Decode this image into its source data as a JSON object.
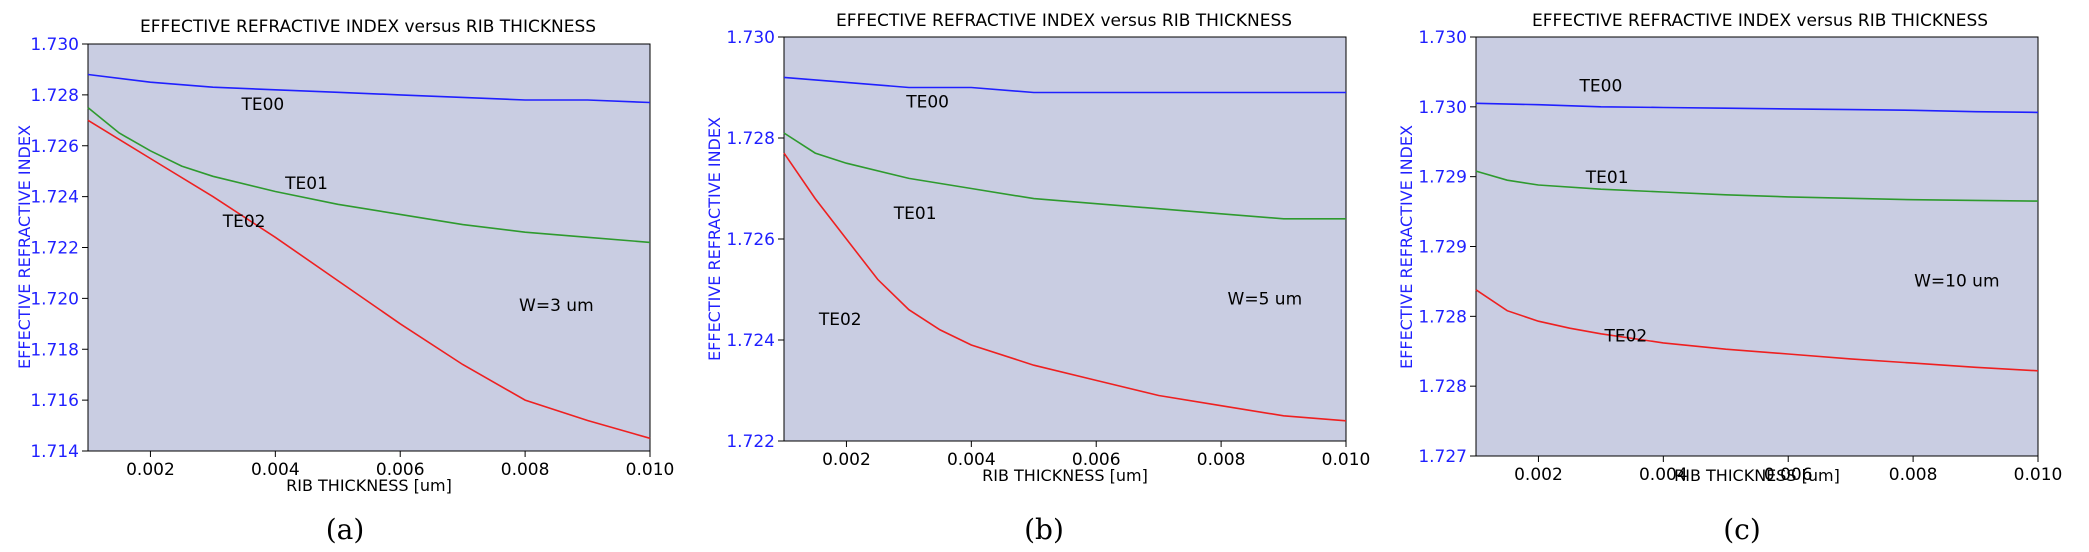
{
  "chart_data": [
    {
      "type": "line",
      "caption": "(a)",
      "title": "EFFECTIVE REFRACTIVE INDEX versus RIB THICKNESS",
      "xlabel": "RIB THICKNESS [um]",
      "ylabel": "EFFECTIVE REFRACTIVE INDEX",
      "xlim": [
        0.001,
        0.01
      ],
      "ylim": [
        1.714,
        1.73
      ],
      "xticks": [
        0.002,
        0.004,
        0.006,
        0.008,
        0.01
      ],
      "xtick_labels": [
        "0.002",
        "0.004",
        "0.006",
        "0.008",
        "0.010"
      ],
      "yticks": [
        1.714,
        1.716,
        1.718,
        1.72,
        1.722,
        1.724,
        1.726,
        1.728,
        1.73
      ],
      "ytick_labels": [
        "1.714",
        "1.716",
        "1.718",
        "1.720",
        "1.722",
        "1.724",
        "1.726",
        "1.728",
        "1.730"
      ],
      "annotation": {
        "text": "W=3 um",
        "x": 0.0085,
        "y": 1.7195
      },
      "series": [
        {
          "name": "TE00",
          "color": "#2020ff",
          "label_at": [
            0.0038,
            1.7274
          ],
          "x": [
            0.001,
            0.002,
            0.003,
            0.004,
            0.005,
            0.006,
            0.007,
            0.008,
            0.009,
            0.01
          ],
          "y": [
            1.7288,
            1.7285,
            1.7283,
            1.7282,
            1.7281,
            1.728,
            1.7279,
            1.7278,
            1.7278,
            1.7277
          ]
        },
        {
          "name": "TE01",
          "color": "#2e9a2e",
          "label_at": [
            0.0045,
            1.7243
          ],
          "x": [
            0.001,
            0.0015,
            0.002,
            0.0025,
            0.003,
            0.004,
            0.005,
            0.006,
            0.007,
            0.008,
            0.009,
            0.01
          ],
          "y": [
            1.7275,
            1.7265,
            1.7258,
            1.7252,
            1.7248,
            1.7242,
            1.7237,
            1.7233,
            1.7229,
            1.7226,
            1.7224,
            1.7222
          ]
        },
        {
          "name": "TE02",
          "color": "#ee2020",
          "label_at": [
            0.0035,
            1.7228
          ],
          "x": [
            0.001,
            0.002,
            0.003,
            0.004,
            0.005,
            0.006,
            0.007,
            0.008,
            0.009,
            0.01
          ],
          "y": [
            1.727,
            1.7255,
            1.724,
            1.7224,
            1.7207,
            1.719,
            1.7174,
            1.716,
            1.7152,
            1.7145
          ]
        }
      ]
    },
    {
      "type": "line",
      "caption": "(b)",
      "title": "EFFECTIVE REFRACTIVE INDEX versus RIB THICKNESS",
      "xlabel": "RIB THICKNESS [um]",
      "ylabel": "EFFECTIVE REFRACTIVE INDEX",
      "xlim": [
        0.001,
        0.01
      ],
      "ylim": [
        1.722,
        1.73
      ],
      "xticks": [
        0.002,
        0.004,
        0.006,
        0.008,
        0.01
      ],
      "xtick_labels": [
        "0.002",
        "0.004",
        "0.006",
        "0.008",
        "0.010"
      ],
      "yticks": [
        1.722,
        1.724,
        1.726,
        1.728,
        1.73
      ],
      "ytick_labels": [
        "1.722",
        "1.724",
        "1.726",
        "1.728",
        "1.730"
      ],
      "annotation": {
        "text": "W=5 um",
        "x": 0.0087,
        "y": 1.7247
      },
      "series": [
        {
          "name": "TE00",
          "color": "#2020ff",
          "label_at": [
            0.0033,
            1.7286
          ],
          "x": [
            0.001,
            0.002,
            0.003,
            0.004,
            0.005,
            0.006,
            0.007,
            0.008,
            0.009,
            0.01
          ],
          "y": [
            1.7292,
            1.7291,
            1.729,
            1.729,
            1.7289,
            1.7289,
            1.7289,
            1.7289,
            1.7289,
            1.7289
          ]
        },
        {
          "name": "TE01",
          "color": "#2e9a2e",
          "label_at": [
            0.0031,
            1.7264
          ],
          "x": [
            0.001,
            0.0015,
            0.002,
            0.003,
            0.004,
            0.005,
            0.006,
            0.007,
            0.008,
            0.009,
            0.01
          ],
          "y": [
            1.7281,
            1.7277,
            1.7275,
            1.7272,
            1.727,
            1.7268,
            1.7267,
            1.7266,
            1.7265,
            1.7264,
            1.7264
          ]
        },
        {
          "name": "TE02",
          "color": "#ee2020",
          "label_at": [
            0.0019,
            1.7243
          ],
          "x": [
            0.001,
            0.0015,
            0.002,
            0.0025,
            0.003,
            0.0035,
            0.004,
            0.005,
            0.006,
            0.007,
            0.008,
            0.009,
            0.01
          ],
          "y": [
            1.7277,
            1.7268,
            1.726,
            1.7252,
            1.7246,
            1.7242,
            1.7239,
            1.7235,
            1.7232,
            1.7229,
            1.7227,
            1.7225,
            1.7224
          ]
        }
      ]
    },
    {
      "type": "line",
      "caption": "(c)",
      "title": "EFFECTIVE REFRACTIVE INDEX versus RIB THICKNESS",
      "xlabel": "RIB THICKNESS [um]",
      "ylabel": "EFFECTIVE REFRACTIVE INDEX",
      "xlim": [
        0.001,
        0.01
      ],
      "ylim": [
        0,
        6
      ],
      "xticks": [
        0.002,
        0.004,
        0.006,
        0.008,
        0.01
      ],
      "xtick_labels": [
        "0.002",
        "0.004",
        "0.006",
        "0.008",
        "0.010"
      ],
      "yticks": [
        0,
        1,
        2,
        3,
        4,
        5,
        6
      ],
      "ytick_labels": [
        "1.727",
        "1.728",
        "1.728",
        "1.729",
        "1.729",
        "1.730",
        "1.730"
      ],
      "annotation": {
        "text": "W=10 um",
        "x": 0.0087,
        "y": 2.43
      },
      "series": [
        {
          "name": "TE00",
          "color": "#2020ff",
          "label_at": [
            0.003,
            5.22
          ],
          "x": [
            0.001,
            0.002,
            0.003,
            0.004,
            0.005,
            0.006,
            0.007,
            0.008,
            0.009,
            0.01
          ],
          "y": [
            5.05,
            5.03,
            5.0,
            4.99,
            4.98,
            4.97,
            4.96,
            4.95,
            4.93,
            4.92
          ]
        },
        {
          "name": "TE01",
          "color": "#2e9a2e",
          "label_at": [
            0.0031,
            3.91
          ],
          "x": [
            0.001,
            0.0015,
            0.002,
            0.003,
            0.004,
            0.005,
            0.006,
            0.007,
            0.008,
            0.009,
            0.01
          ],
          "y": [
            4.08,
            3.95,
            3.88,
            3.82,
            3.78,
            3.74,
            3.71,
            3.69,
            3.67,
            3.66,
            3.65
          ]
        },
        {
          "name": "TE02",
          "color": "#ee2020",
          "label_at": [
            0.0034,
            1.64
          ],
          "x": [
            0.001,
            0.0015,
            0.002,
            0.0025,
            0.003,
            0.004,
            0.005,
            0.006,
            0.007,
            0.008,
            0.009,
            0.01
          ],
          "y": [
            2.38,
            2.08,
            1.93,
            1.83,
            1.75,
            1.62,
            1.53,
            1.46,
            1.39,
            1.33,
            1.27,
            1.22
          ]
        }
      ]
    }
  ]
}
